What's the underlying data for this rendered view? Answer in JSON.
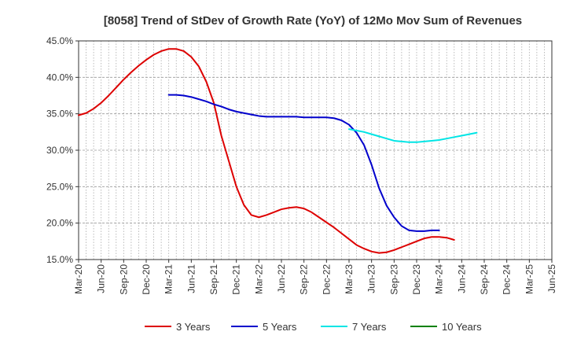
{
  "chart_data": {
    "type": "line",
    "title": "[8058]  Trend of StDev of Growth Rate (YoY) of 12Mo Mov Sum of Revenues",
    "xlabel": "",
    "ylabel": "",
    "ylim": [
      15,
      45
    ],
    "y_ticks": [
      15,
      20,
      25,
      30,
      35,
      40,
      45
    ],
    "y_tick_labels": [
      "15.0%",
      "20.0%",
      "25.0%",
      "30.0%",
      "35.0%",
      "40.0%",
      "45.0%"
    ],
    "x_ticks": [
      "Mar-20",
      "Jun-20",
      "Sep-20",
      "Dec-20",
      "Mar-21",
      "Jun-21",
      "Sep-21",
      "Dec-21",
      "Mar-22",
      "Jun-22",
      "Sep-22",
      "Dec-22",
      "Mar-23",
      "Jun-23",
      "Sep-23",
      "Dec-23",
      "Mar-24",
      "Jun-24",
      "Sep-24",
      "Dec-24",
      "Mar-25",
      "Jun-25"
    ],
    "grid": true,
    "legend_position": "bottom",
    "series": [
      {
        "name": "3 Years",
        "color": "#dd0000",
        "start": "Mar-20",
        "values": [
          34.8,
          35.1,
          35.7,
          36.5,
          37.5,
          38.6,
          39.7,
          40.7,
          41.6,
          42.4,
          43.1,
          43.6,
          43.9,
          43.9,
          43.6,
          42.8,
          41.5,
          39.4,
          36.5,
          32.0,
          28.5,
          25.0,
          22.5,
          21.1,
          20.8,
          21.1,
          21.5,
          21.9,
          22.1,
          22.2,
          22.0,
          21.5,
          20.8,
          20.1,
          19.4,
          18.6,
          17.8,
          17.0,
          16.5,
          16.1,
          15.9,
          16.0,
          16.3,
          16.7,
          17.1,
          17.5,
          17.9,
          18.1,
          18.1,
          18.0,
          17.7
        ]
      },
      {
        "name": "5 Years",
        "color": "#0000cc",
        "start": "Mar-21",
        "values": [
          37.6,
          37.6,
          37.5,
          37.3,
          37.0,
          36.7,
          36.3,
          36.0,
          35.6,
          35.3,
          35.1,
          34.9,
          34.7,
          34.6,
          34.6,
          34.6,
          34.6,
          34.6,
          34.5,
          34.5,
          34.5,
          34.5,
          34.4,
          34.1,
          33.5,
          32.4,
          30.7,
          28.0,
          24.8,
          22.4,
          20.8,
          19.6,
          19.0,
          18.9,
          18.9,
          19.0,
          19.0
        ]
      },
      {
        "name": "7 Years",
        "color": "#00e5e5",
        "start": "Mar-23",
        "values": [
          32.9,
          32.7,
          32.5,
          32.2,
          31.9,
          31.6,
          31.3,
          31.2,
          31.1,
          31.1,
          31.2,
          31.3,
          31.4,
          31.6,
          31.8,
          32.0,
          32.2,
          32.4
        ]
      },
      {
        "name": "10 Years",
        "color": "#008000",
        "start": "Mar-25",
        "values": []
      }
    ]
  }
}
